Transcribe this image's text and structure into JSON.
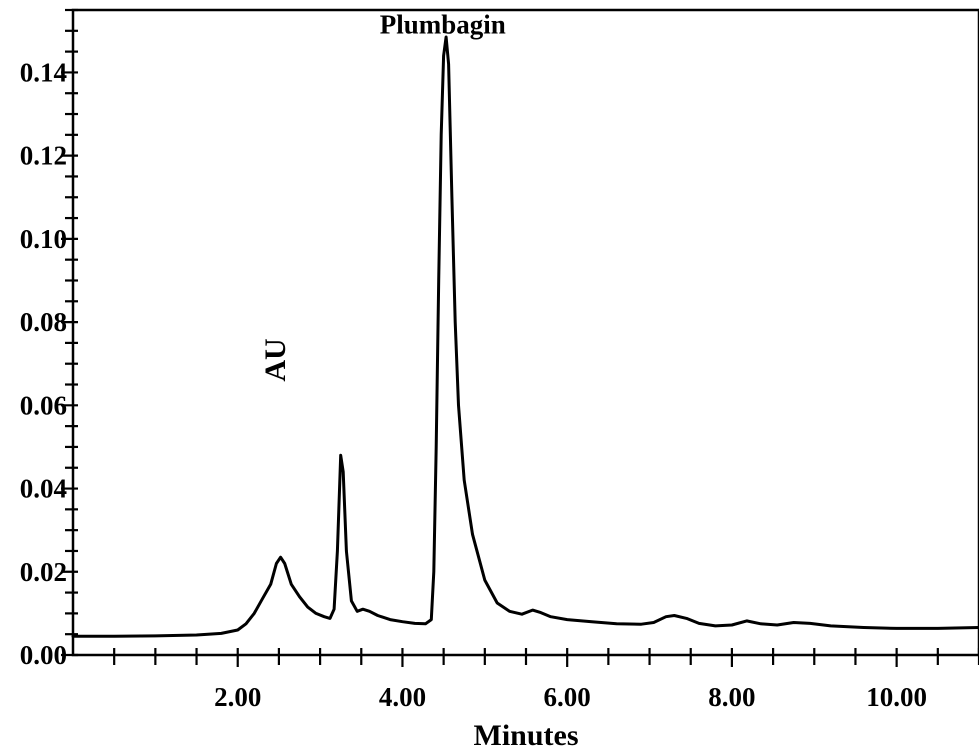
{
  "chart_data": {
    "type": "line",
    "title": "",
    "xlabel": "Minutes",
    "ylabel": "AU",
    "xlim": [
      0,
      11
    ],
    "ylim": [
      0,
      0.155
    ],
    "x_ticks": [
      2,
      4,
      6,
      8,
      10
    ],
    "x_tick_labels": [
      "2.00",
      "4.00",
      "6.00",
      "8.00",
      "10.00"
    ],
    "x_minor_step": 0.5,
    "y_ticks": [
      0,
      0.02,
      0.04,
      0.06,
      0.08,
      0.1,
      0.12,
      0.14
    ],
    "y_tick_labels": [
      "0.00",
      "0.02",
      "0.04",
      "0.06",
      "0.08",
      "0.10",
      "0.12",
      "0.14"
    ],
    "y_minor_step": 0.005,
    "grid": false,
    "annotations": [
      {
        "text": "Plumbagin",
        "x": 4.55,
        "y": 0.147
      }
    ],
    "series": [
      {
        "points": [
          [
            0.0,
            0.0045
          ],
          [
            0.5,
            0.0045
          ],
          [
            1.0,
            0.0046
          ],
          [
            1.5,
            0.0048
          ],
          [
            1.8,
            0.0052
          ],
          [
            2.0,
            0.006
          ],
          [
            2.1,
            0.0075
          ],
          [
            2.2,
            0.01
          ],
          [
            2.3,
            0.0135
          ],
          [
            2.4,
            0.017
          ],
          [
            2.47,
            0.022
          ],
          [
            2.52,
            0.0235
          ],
          [
            2.57,
            0.022
          ],
          [
            2.65,
            0.017
          ],
          [
            2.75,
            0.014
          ],
          [
            2.85,
            0.0115
          ],
          [
            2.95,
            0.01
          ],
          [
            3.05,
            0.0092
          ],
          [
            3.12,
            0.0088
          ],
          [
            3.17,
            0.011
          ],
          [
            3.21,
            0.025
          ],
          [
            3.25,
            0.048
          ],
          [
            3.28,
            0.044
          ],
          [
            3.32,
            0.025
          ],
          [
            3.38,
            0.013
          ],
          [
            3.45,
            0.0105
          ],
          [
            3.52,
            0.011
          ],
          [
            3.6,
            0.0105
          ],
          [
            3.7,
            0.0095
          ],
          [
            3.85,
            0.0085
          ],
          [
            4.0,
            0.008
          ],
          [
            4.15,
            0.0076
          ],
          [
            4.28,
            0.0075
          ],
          [
            4.35,
            0.0085
          ],
          [
            4.38,
            0.02
          ],
          [
            4.41,
            0.05
          ],
          [
            4.44,
            0.09
          ],
          [
            4.47,
            0.125
          ],
          [
            4.5,
            0.144
          ],
          [
            4.53,
            0.1485
          ],
          [
            4.56,
            0.142
          ],
          [
            4.6,
            0.11
          ],
          [
            4.64,
            0.08
          ],
          [
            4.68,
            0.06
          ],
          [
            4.75,
            0.042
          ],
          [
            4.85,
            0.029
          ],
          [
            5.0,
            0.018
          ],
          [
            5.15,
            0.0125
          ],
          [
            5.3,
            0.0105
          ],
          [
            5.45,
            0.0098
          ],
          [
            5.58,
            0.0108
          ],
          [
            5.68,
            0.0102
          ],
          [
            5.8,
            0.0092
          ],
          [
            6.0,
            0.0085
          ],
          [
            6.3,
            0.008
          ],
          [
            6.6,
            0.0075
          ],
          [
            6.9,
            0.0074
          ],
          [
            7.05,
            0.0078
          ],
          [
            7.2,
            0.0092
          ],
          [
            7.3,
            0.0095
          ],
          [
            7.45,
            0.0088
          ],
          [
            7.6,
            0.0076
          ],
          [
            7.8,
            0.007
          ],
          [
            8.0,
            0.0072
          ],
          [
            8.18,
            0.0082
          ],
          [
            8.35,
            0.0075
          ],
          [
            8.55,
            0.0072
          ],
          [
            8.75,
            0.0078
          ],
          [
            8.95,
            0.0076
          ],
          [
            9.2,
            0.007
          ],
          [
            9.6,
            0.0066
          ],
          [
            10.0,
            0.0064
          ],
          [
            10.5,
            0.0064
          ],
          [
            11.0,
            0.0066
          ]
        ]
      }
    ]
  }
}
